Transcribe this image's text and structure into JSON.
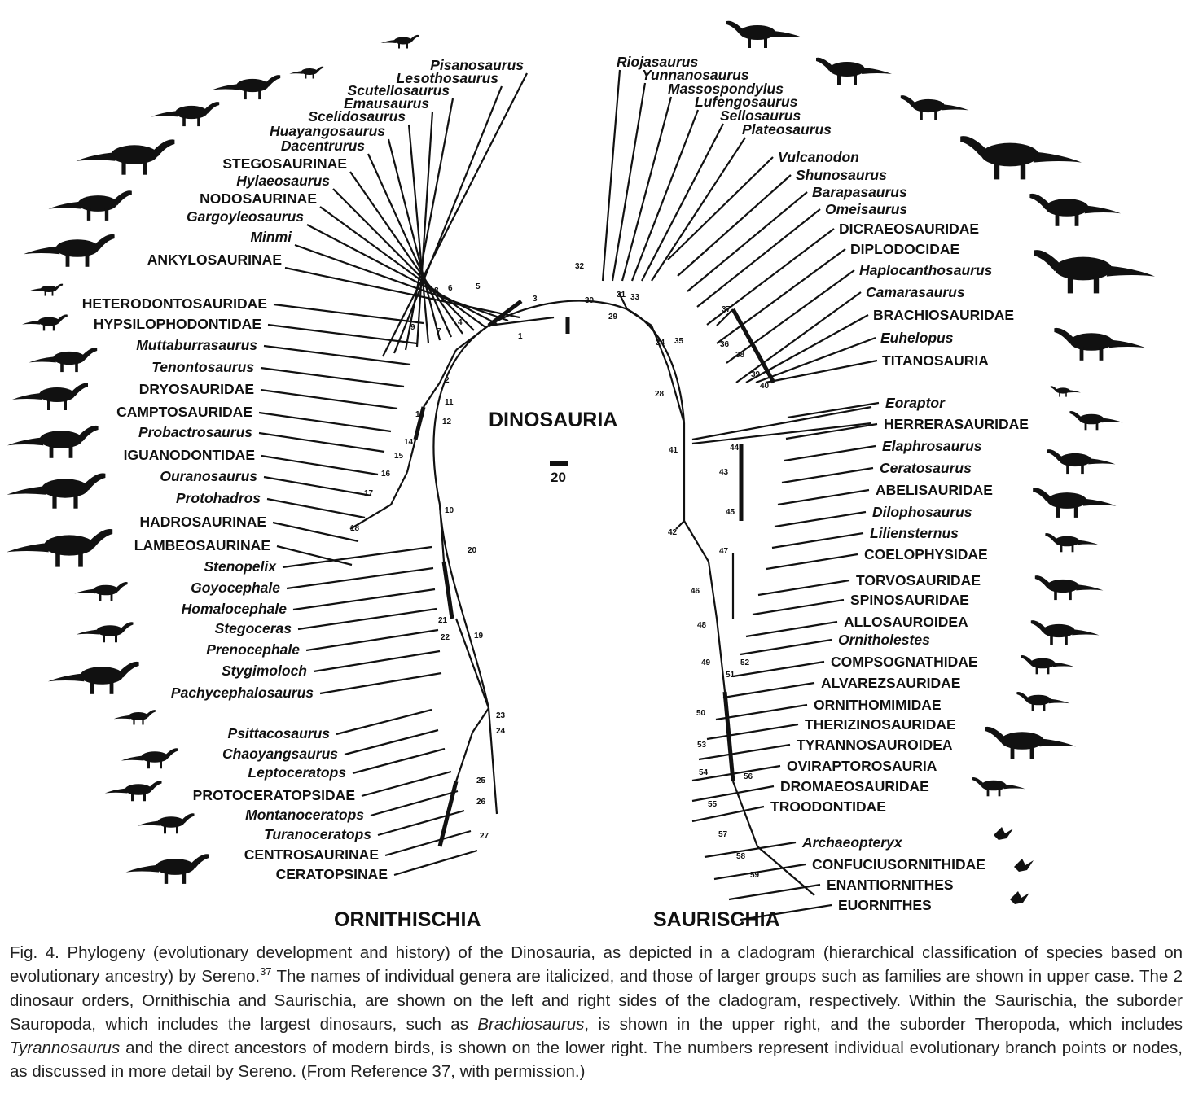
{
  "title": "DINOSAURIA",
  "scale_bar": "20",
  "orders": {
    "left": "ORNITHISCHIA",
    "right": "SAURISCHIA"
  },
  "taxa_left": [
    {
      "name": "Pisanosaurus",
      "italic": true
    },
    {
      "name": "Lesothosaurus",
      "italic": true
    },
    {
      "name": "Scutellosaurus",
      "italic": true
    },
    {
      "name": "Emausaurus",
      "italic": true
    },
    {
      "name": "Scelidosaurus",
      "italic": true
    },
    {
      "name": "Huayangosaurus",
      "italic": true
    },
    {
      "name": "Dacentrurus",
      "italic": true
    },
    {
      "name": "STEGOSAURINAE",
      "italic": false
    },
    {
      "name": "Hylaeosaurus",
      "italic": true
    },
    {
      "name": "NODOSAURINAE",
      "italic": false
    },
    {
      "name": "Gargoyleosaurus",
      "italic": true
    },
    {
      "name": "Minmi",
      "italic": true
    },
    {
      "name": "ANKYLOSAURINAE",
      "italic": false
    },
    {
      "name": "HETERODONTOSAURIDAE",
      "italic": false
    },
    {
      "name": "HYPSILOPHODONTIDAE",
      "italic": false
    },
    {
      "name": "Muttaburrasaurus",
      "italic": true
    },
    {
      "name": "Tenontosaurus",
      "italic": true
    },
    {
      "name": "DRYOSAURIDAE",
      "italic": false
    },
    {
      "name": "CAMPTOSAURIDAE",
      "italic": false
    },
    {
      "name": "Probactrosaurus",
      "italic": true
    },
    {
      "name": "IGUANODONTIDAE",
      "italic": false
    },
    {
      "name": "Ouranosaurus",
      "italic": true
    },
    {
      "name": "Protohadros",
      "italic": true
    },
    {
      "name": "HADROSAURINAE",
      "italic": false
    },
    {
      "name": "LAMBEOSAURINAE",
      "italic": false
    },
    {
      "name": "Stenopelix",
      "italic": true
    },
    {
      "name": "Goyocephale",
      "italic": true
    },
    {
      "name": "Homalocephale",
      "italic": true
    },
    {
      "name": "Stegoceras",
      "italic": true
    },
    {
      "name": "Prenocephale",
      "italic": true
    },
    {
      "name": "Stygimoloch",
      "italic": true
    },
    {
      "name": "Pachycephalosaurus",
      "italic": true
    },
    {
      "name": "Psittacosaurus",
      "italic": true
    },
    {
      "name": "Chaoyangsaurus",
      "italic": true
    },
    {
      "name": "Leptoceratops",
      "italic": true
    },
    {
      "name": "PROTOCERATOPSIDAE",
      "italic": false
    },
    {
      "name": "Montanoceratops",
      "italic": true
    },
    {
      "name": "Turanoceratops",
      "italic": true
    },
    {
      "name": "CENTROSAURINAE",
      "italic": false
    },
    {
      "name": "CERATOPSINAE",
      "italic": false
    }
  ],
  "taxa_right": [
    {
      "name": "Riojasaurus",
      "italic": true
    },
    {
      "name": "Yunnanosaurus",
      "italic": true
    },
    {
      "name": "Massospondylus",
      "italic": true
    },
    {
      "name": "Lufengosaurus",
      "italic": true
    },
    {
      "name": "Sellosaurus",
      "italic": true
    },
    {
      "name": "Plateosaurus",
      "italic": true
    },
    {
      "name": "Vulcanodon",
      "italic": true
    },
    {
      "name": "Shunosaurus",
      "italic": true
    },
    {
      "name": "Barapasaurus",
      "italic": true
    },
    {
      "name": "Omeisaurus",
      "italic": true
    },
    {
      "name": "DICRAEOSAURIDAE",
      "italic": false
    },
    {
      "name": "DIPLODOCIDAE",
      "italic": false
    },
    {
      "name": "Haplocanthosaurus",
      "italic": true
    },
    {
      "name": "Camarasaurus",
      "italic": true
    },
    {
      "name": "BRACHIOSAURIDAE",
      "italic": false
    },
    {
      "name": "Euhelopus",
      "italic": true
    },
    {
      "name": "TITANOSAURIA",
      "italic": false
    },
    {
      "name": "Eoraptor",
      "italic": true
    },
    {
      "name": "HERRERASAURIDAE",
      "italic": false
    },
    {
      "name": "Elaphrosaurus",
      "italic": true
    },
    {
      "name": "Ceratosaurus",
      "italic": true
    },
    {
      "name": "ABELISAURIDAE",
      "italic": false
    },
    {
      "name": "Dilophosaurus",
      "italic": true
    },
    {
      "name": "Liliensternus",
      "italic": true
    },
    {
      "name": "COELOPHYSIDAE",
      "italic": false
    },
    {
      "name": "TORVOSAURIDAE",
      "italic": false
    },
    {
      "name": "SPINOSAURIDAE",
      "italic": false
    },
    {
      "name": "ALLOSAUROIDEA",
      "italic": false
    },
    {
      "name": "Ornitholestes",
      "italic": true
    },
    {
      "name": "COMPSOGNATHIDAE",
      "italic": false
    },
    {
      "name": "ALVAREZSAURIDAE",
      "italic": false
    },
    {
      "name": "ORNITHOMIMIDAE",
      "italic": false
    },
    {
      "name": "THERIZINOSAURIDAE",
      "italic": false
    },
    {
      "name": "TYRANNOSAUROIDEA",
      "italic": false
    },
    {
      "name": "OVIRAPTOROSAURIA",
      "italic": false
    },
    {
      "name": "DROMAEOSAURIDAE",
      "italic": false
    },
    {
      "name": "TROODONTIDAE",
      "italic": false
    },
    {
      "name": "Archaeopteryx",
      "italic": true
    },
    {
      "name": "CONFUCIUSORNITHIDAE",
      "italic": false
    },
    {
      "name": "ENANTIORNITHES",
      "italic": false
    },
    {
      "name": "EUORNITHES",
      "italic": false
    }
  ],
  "nodes": [
    "1",
    "2",
    "3",
    "4",
    "5",
    "6",
    "7",
    "8",
    "9",
    "10",
    "11",
    "12",
    "13",
    "14",
    "15",
    "16",
    "17",
    "18",
    "19",
    "20",
    "21",
    "22",
    "23",
    "24",
    "25",
    "26",
    "27",
    "28",
    "29",
    "30",
    "31",
    "32",
    "33",
    "34",
    "35",
    "36",
    "37",
    "38",
    "39",
    "40",
    "41",
    "42",
    "43",
    "44",
    "45",
    "46",
    "47",
    "48",
    "49",
    "50",
    "51",
    "52",
    "53",
    "54",
    "55",
    "56",
    "57",
    "58",
    "59"
  ],
  "caption": {
    "p1": "Fig. 4. Phylogeny (evolutionary development and history) of the Dinosauria, as depicted in a cladogram (hierarchical classification of species based on evolutionary ancestry) by Sereno.",
    "ref": "37",
    "p2": " The names of individual genera are italicized, and those of larger groups such as families are shown in upper case. The 2 dinosaur orders, Ornithischia and Saurischia, are shown on the left and right sides of the cladogram, respectively. Within the Saurischia, the suborder Sauropoda, which includes the largest dinosaurs, such as ",
    "it1": "Brachiosaurus",
    "p3": ", is shown in the upper right, and the suborder Theropoda, which includes ",
    "it2": "Tyrannosaurus",
    "p4": " and the direct ancestors of modern birds, is shown on the lower right. The numbers represent individual evolutionary branch points or nodes, as discussed in more detail by Sereno. (From Reference 37, with permission.)"
  }
}
